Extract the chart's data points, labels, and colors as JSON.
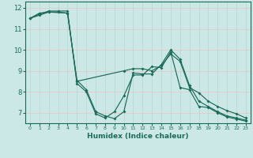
{
  "xlabel": "Humidex (Indice chaleur)",
  "background_color": "#cce8e6",
  "grid_color_h": "#e8c8c8",
  "grid_color_v": "#b8d8d6",
  "line_color": "#1a6b5a",
  "x_ticks": [
    0,
    1,
    2,
    3,
    4,
    5,
    6,
    7,
    8,
    9,
    10,
    11,
    12,
    13,
    14,
    15,
    16,
    17,
    18,
    19,
    20,
    21,
    22,
    23
  ],
  "ylim": [
    6.5,
    12.3
  ],
  "xlim": [
    -0.5,
    23.5
  ],
  "yticks": [
    7,
    8,
    9,
    10,
    11,
    12
  ],
  "line1_x": [
    0,
    1,
    2,
    3,
    4,
    5,
    6,
    7,
    8,
    9,
    10,
    11,
    12,
    13,
    14,
    15,
    16,
    17,
    18,
    19,
    20,
    21,
    22,
    23
  ],
  "line1_y": [
    11.5,
    11.75,
    11.8,
    11.8,
    11.75,
    8.55,
    8.1,
    7.05,
    6.85,
    6.72,
    7.05,
    8.9,
    8.85,
    8.85,
    9.3,
    10.0,
    9.55,
    8.3,
    7.55,
    7.3,
    7.05,
    6.85,
    6.75,
    6.65
  ],
  "line2_x": [
    0,
    1,
    2,
    3,
    4,
    5,
    6,
    7,
    8,
    9,
    10,
    11,
    12,
    13,
    14,
    15,
    16,
    17,
    18,
    19,
    20,
    21,
    22,
    23
  ],
  "line2_y": [
    11.5,
    11.7,
    11.85,
    11.85,
    11.85,
    8.4,
    8.0,
    6.95,
    6.75,
    7.05,
    7.8,
    8.8,
    8.8,
    9.2,
    9.15,
    9.9,
    8.2,
    8.1,
    7.3,
    7.25,
    7.0,
    6.8,
    6.7,
    6.6
  ],
  "line3_x": [
    0,
    1,
    2,
    4,
    5,
    10,
    11,
    12,
    13,
    14,
    15,
    16,
    17,
    18,
    19,
    20,
    21,
    22,
    23
  ],
  "line3_y": [
    11.5,
    11.65,
    11.8,
    11.75,
    8.5,
    9.0,
    9.1,
    9.1,
    9.0,
    9.25,
    9.8,
    9.45,
    8.2,
    7.95,
    7.55,
    7.3,
    7.1,
    6.95,
    6.75
  ]
}
